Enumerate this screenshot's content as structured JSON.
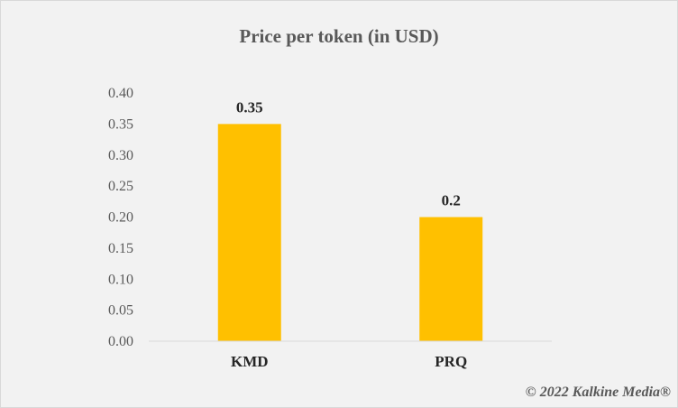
{
  "chart_data": {
    "type": "bar",
    "title": "Price per token (in USD)",
    "xlabel": "",
    "ylabel": "",
    "categories": [
      "KMD",
      "PRQ"
    ],
    "values": [
      0.35,
      0.2
    ],
    "data_labels": [
      "0.35",
      "0.2"
    ],
    "ylim": [
      0,
      0.4
    ],
    "yticks": [
      "0.00",
      "0.05",
      "0.10",
      "0.15",
      "0.20",
      "0.25",
      "0.30",
      "0.35",
      "0.40"
    ],
    "grid": false,
    "legend": "none",
    "bar_color": "#ffc000"
  },
  "watermark": "© 2022 Kalkine Media®"
}
